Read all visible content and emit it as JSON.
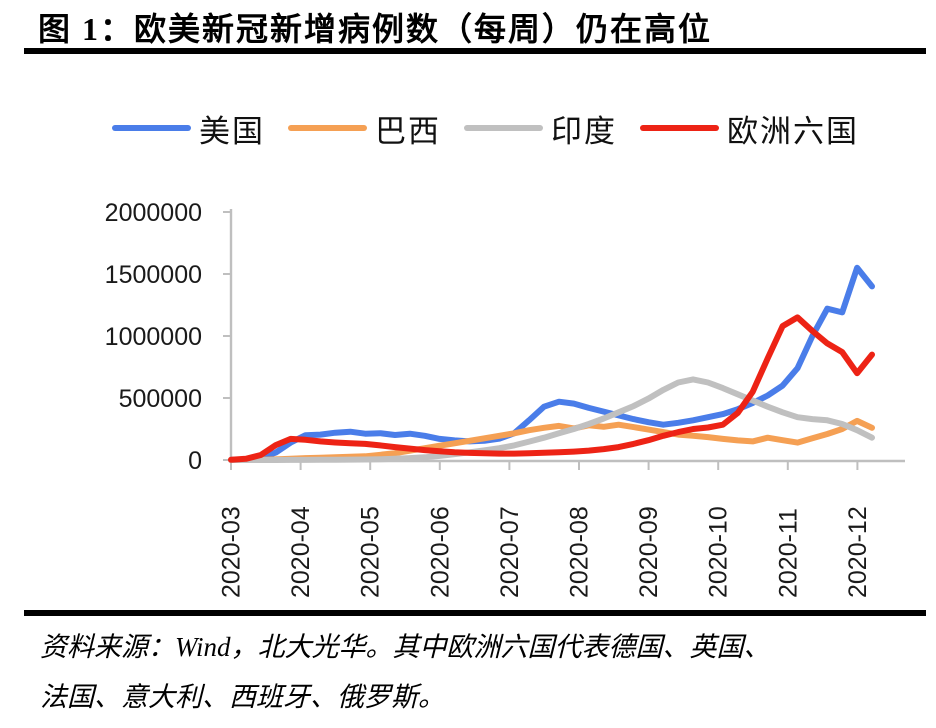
{
  "title": "图 1：欧美新冠新增病例数（每周）仍在高位",
  "source_note": {
    "line1": "资料来源：Wind，北大光华。其中欧洲六国代表德国、英国、",
    "line2": "法国、意大利、西班牙、俄罗斯。"
  },
  "colors": {
    "us_blue": "#4A7DE9",
    "brazil_orange": "#F5A054",
    "india_gray": "#C0C0C0",
    "europe_red": "#ED2315",
    "axis_gray": "#BFBFBF",
    "text_black": "#1a1a1a"
  },
  "chart_data": {
    "type": "line",
    "title": "欧美新冠新增病例数（每周）",
    "frequency": "weekly",
    "x_start_label": "2020-03",
    "x_tick_labels": [
      "2020-03",
      "2020-04",
      "2020-05",
      "2020-06",
      "2020-07",
      "2020-08",
      "2020-09",
      "2020-10",
      "2020-11",
      "2020-12"
    ],
    "y_ticks": [
      0,
      500000,
      1000000,
      1500000,
      2000000
    ],
    "ylim": [
      0,
      2000000
    ],
    "grid": false,
    "legend_position": "top",
    "series": [
      {
        "id": "us",
        "name": "美国",
        "color": "#4A7DE9",
        "values": [
          500,
          3000,
          15000,
          60000,
          140000,
          200000,
          205000,
          220000,
          228000,
          212000,
          216000,
          202000,
          212000,
          195000,
          170000,
          158000,
          150000,
          155000,
          172000,
          215000,
          320000,
          430000,
          470000,
          455000,
          420000,
          390000,
          360000,
          330000,
          305000,
          285000,
          300000,
          320000,
          345000,
          370000,
          410000,
          460000,
          520000,
          600000,
          740000,
          1000000,
          1220000,
          1190000,
          1550000,
          1400000
        ]
      },
      {
        "id": "brazil",
        "name": "巴西",
        "color": "#F5A054",
        "values": [
          0,
          500,
          2000,
          5000,
          10000,
          15000,
          18000,
          22000,
          26000,
          30000,
          42000,
          55000,
          75000,
          95000,
          115000,
          135000,
          155000,
          175000,
          195000,
          215000,
          240000,
          260000,
          275000,
          255000,
          280000,
          268000,
          285000,
          265000,
          245000,
          225000,
          205000,
          195000,
          185000,
          170000,
          158000,
          150000,
          180000,
          160000,
          140000,
          175000,
          210000,
          250000,
          315000,
          260000
        ]
      },
      {
        "id": "india",
        "name": "印度",
        "color": "#C0C0C0",
        "values": [
          0,
          0,
          100,
          300,
          600,
          1000,
          1500,
          2200,
          3000,
          4000,
          6000,
          10000,
          15000,
          22000,
          33000,
          47000,
          62000,
          78000,
          95000,
          118000,
          148000,
          180000,
          215000,
          250000,
          290000,
          335000,
          385000,
          435000,
          495000,
          565000,
          625000,
          650000,
          625000,
          580000,
          530000,
          480000,
          430000,
          385000,
          345000,
          330000,
          320000,
          290000,
          240000,
          180000
        ]
      },
      {
        "id": "europe6",
        "name": "欧洲六国",
        "color": "#ED2315",
        "values": [
          2000,
          10000,
          40000,
          120000,
          170000,
          163000,
          150000,
          141000,
          135000,
          130000,
          118000,
          104000,
          92000,
          80000,
          70000,
          62000,
          57000,
          54000,
          52000,
          52000,
          55000,
          58000,
          62000,
          68000,
          76000,
          88000,
          104000,
          130000,
          160000,
          195000,
          225000,
          250000,
          262000,
          285000,
          380000,
          550000,
          820000,
          1080000,
          1150000,
          1040000,
          940000,
          870000,
          700000,
          850000
        ]
      }
    ]
  }
}
